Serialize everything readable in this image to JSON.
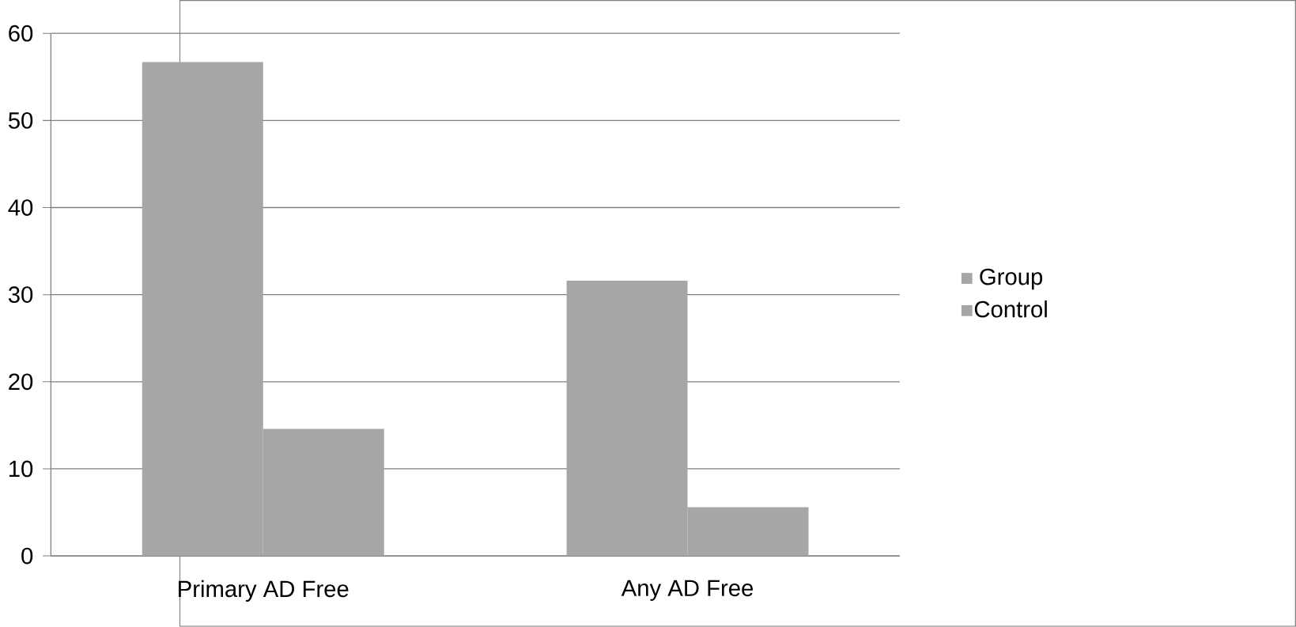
{
  "chart_data": {
    "type": "bar",
    "categories": [
      "Primary AD Free",
      "Any AD Free"
    ],
    "series": [
      {
        "name": "Group",
        "color": "#a6a6a6",
        "values": [
          56.7,
          31.6
        ]
      },
      {
        "name": "Control",
        "color": "#a6a6a6",
        "values": [
          14.6,
          5.6
        ]
      }
    ],
    "ylim": [
      0,
      60
    ],
    "yticks": [
      0,
      10,
      20,
      30,
      40,
      50,
      60
    ],
    "grid": "y",
    "legend": "right"
  }
}
